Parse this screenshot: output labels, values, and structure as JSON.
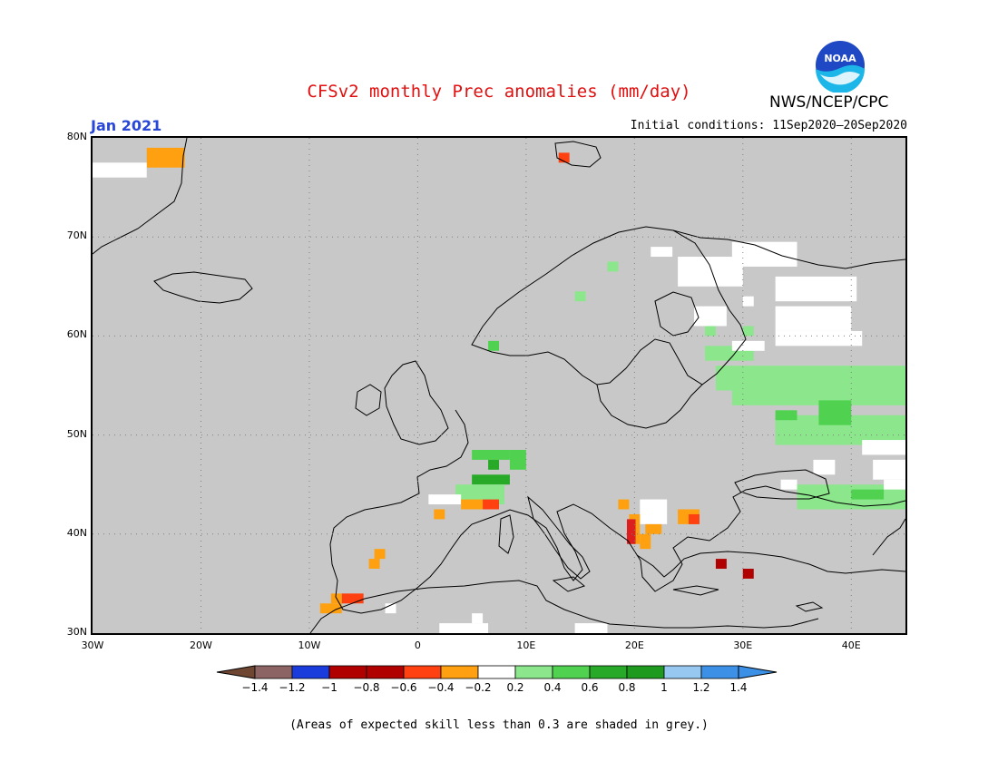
{
  "title": "CFSv2 monthly Prec anomalies (mm/day)",
  "organization": "NWS/NCEP/CPC",
  "logo_text": "NOAA",
  "target_month": "Jan 2021",
  "initial_conditions": "Initial conditions: 11Sep2020–20Sep2020",
  "map": {
    "lon_range": [
      -30,
      45
    ],
    "lat_range": [
      30,
      80
    ],
    "background_color": "#c8c8c8",
    "lat_labels": [
      "80N",
      "70N",
      "60N",
      "50N",
      "40N",
      "30N"
    ],
    "lat_values": [
      80,
      70,
      60,
      50,
      40,
      30
    ],
    "lon_labels": [
      "30W",
      "20W",
      "10W",
      "0",
      "10E",
      "20E",
      "30E",
      "40E"
    ],
    "lon_values": [
      -30,
      -20,
      -10,
      0,
      10,
      20,
      30,
      40
    ],
    "anomaly_cells": [
      {
        "lon": -25,
        "lat": 79,
        "w": 3.5,
        "h": 2,
        "color": "#ffa010"
      },
      {
        "lon": 13,
        "lat": 78.5,
        "w": 1,
        "h": 1,
        "color": "#ff4010"
      },
      {
        "lon": 17.5,
        "lat": 67.5,
        "w": 1,
        "h": 1,
        "color": "#8ce68c"
      },
      {
        "lon": 14.5,
        "lat": 64.5,
        "w": 1,
        "h": 1,
        "color": "#8ce68c"
      },
      {
        "lon": 6.5,
        "lat": 59.5,
        "w": 1,
        "h": 1,
        "color": "#50d250"
      },
      {
        "lon": 26.5,
        "lat": 59,
        "w": 4.5,
        "h": 1.5,
        "color": "#8ce68c"
      },
      {
        "lon": 27.5,
        "lat": 57,
        "w": 17.5,
        "h": 2.5,
        "color": "#8ce68c"
      },
      {
        "lon": 29,
        "lat": 55,
        "w": 16,
        "h": 2,
        "color": "#8ce68c"
      },
      {
        "lon": 33,
        "lat": 52,
        "w": 12,
        "h": 3,
        "color": "#8ce68c"
      },
      {
        "lon": 37,
        "lat": 53.5,
        "w": 3,
        "h": 2.5,
        "color": "#50d250"
      },
      {
        "lon": 33,
        "lat": 52.5,
        "w": 2,
        "h": 1,
        "color": "#50d250"
      },
      {
        "lon": 35,
        "lat": 45,
        "w": 10,
        "h": 2.5,
        "color": "#8ce68c"
      },
      {
        "lon": 40,
        "lat": 44.5,
        "w": 3,
        "h": 1,
        "color": "#50d250"
      },
      {
        "lon": 5,
        "lat": 48.5,
        "w": 3.5,
        "h": 1,
        "color": "#50d250"
      },
      {
        "lon": 8.5,
        "lat": 48.5,
        "w": 1.5,
        "h": 2,
        "color": "#50d250"
      },
      {
        "lon": 6.5,
        "lat": 47.5,
        "w": 1,
        "h": 1,
        "color": "#28aa28"
      },
      {
        "lon": 5,
        "lat": 46,
        "w": 3.5,
        "h": 1,
        "color": "#28aa28"
      },
      {
        "lon": 3.5,
        "lat": 45,
        "w": 4.5,
        "h": 2,
        "color": "#8ce68c"
      },
      {
        "lon": 1,
        "lat": 44,
        "w": 3,
        "h": 1,
        "color": "#ffffff"
      },
      {
        "lon": 4,
        "lat": 43.5,
        "w": 2,
        "h": 1,
        "color": "#ffa010"
      },
      {
        "lon": 6,
        "lat": 43.5,
        "w": 1.5,
        "h": 1,
        "color": "#ff4010"
      },
      {
        "lon": 1.5,
        "lat": 42.5,
        "w": 1,
        "h": 1,
        "color": "#ffa010"
      },
      {
        "lon": 18.5,
        "lat": 43.5,
        "w": 1,
        "h": 1,
        "color": "#ffa010"
      },
      {
        "lon": 20.5,
        "lat": 43.5,
        "w": 2.5,
        "h": 2.5,
        "color": "#ffffff"
      },
      {
        "lon": 19.5,
        "lat": 42,
        "w": 1,
        "h": 3,
        "color": "#ffa010"
      },
      {
        "lon": 19.3,
        "lat": 41.5,
        "w": 0.8,
        "h": 2.5,
        "color": "#dc1e1e"
      },
      {
        "lon": 20.5,
        "lat": 40,
        "w": 1,
        "h": 1.5,
        "color": "#ffa010"
      },
      {
        "lon": 21,
        "lat": 41,
        "w": 1.5,
        "h": 1,
        "color": "#ffa010"
      },
      {
        "lon": 24,
        "lat": 42.5,
        "w": 2,
        "h": 1.5,
        "color": "#ffa010"
      },
      {
        "lon": 25,
        "lat": 42,
        "w": 1,
        "h": 1,
        "color": "#ff4010"
      },
      {
        "lon": 27.5,
        "lat": 37.5,
        "w": 1,
        "h": 1,
        "color": "#b00000"
      },
      {
        "lon": 30,
        "lat": 36.5,
        "w": 1,
        "h": 1,
        "color": "#b00000"
      },
      {
        "lon": -4,
        "lat": 38.5,
        "w": 1,
        "h": 1,
        "color": "#ffa010"
      },
      {
        "lon": -4.5,
        "lat": 37.5,
        "w": 1,
        "h": 1,
        "color": "#ffa010"
      },
      {
        "lon": -8,
        "lat": 34,
        "w": 1,
        "h": 1,
        "color": "#ffa010"
      },
      {
        "lon": -7,
        "lat": 34,
        "w": 2,
        "h": 1,
        "color": "#ff4010"
      },
      {
        "lon": -9,
        "lat": 33,
        "w": 2,
        "h": 1,
        "color": "#ffa010"
      },
      {
        "lon": 2,
        "lat": 31,
        "w": 4.5,
        "h": 1,
        "color": "#ffffff"
      },
      {
        "lon": 5,
        "lat": 32,
        "w": 1,
        "h": 1,
        "color": "#ffffff"
      },
      {
        "lon": 14.5,
        "lat": 31,
        "w": 3,
        "h": 1,
        "color": "#ffffff"
      },
      {
        "lon": -3,
        "lat": 33,
        "w": 1,
        "h": 1,
        "color": "#ffffff"
      },
      {
        "lon": -30,
        "lat": 77.5,
        "w": 5,
        "h": 1.5,
        "color": "#ffffff"
      },
      {
        "lon": 21.5,
        "lat": 69,
        "w": 2,
        "h": 1,
        "color": "#ffffff"
      },
      {
        "lon": 24,
        "lat": 68,
        "w": 6,
        "h": 3,
        "color": "#ffffff"
      },
      {
        "lon": 29,
        "lat": 69.5,
        "w": 6,
        "h": 2.5,
        "color": "#ffffff"
      },
      {
        "lon": 33,
        "lat": 66,
        "w": 7.5,
        "h": 2.5,
        "color": "#ffffff"
      },
      {
        "lon": 25.5,
        "lat": 63,
        "w": 3,
        "h": 2,
        "color": "#ffffff"
      },
      {
        "lon": 30,
        "lat": 64,
        "w": 1,
        "h": 1,
        "color": "#ffffff"
      },
      {
        "lon": 33,
        "lat": 63,
        "w": 7,
        "h": 2.5,
        "color": "#ffffff"
      },
      {
        "lon": 33,
        "lat": 60.5,
        "w": 8,
        "h": 1.5,
        "color": "#ffffff"
      },
      {
        "lon": 29,
        "lat": 59.5,
        "w": 3,
        "h": 1,
        "color": "#ffffff"
      },
      {
        "lon": 41,
        "lat": 49.5,
        "w": 4,
        "h": 1.5,
        "color": "#ffffff"
      },
      {
        "lon": 42,
        "lat": 47.5,
        "w": 3,
        "h": 2,
        "color": "#ffffff"
      },
      {
        "lon": 36.5,
        "lat": 47.5,
        "w": 2,
        "h": 1.5,
        "color": "#ffffff"
      },
      {
        "lon": 33.5,
        "lat": 45.5,
        "w": 1.5,
        "h": 1,
        "color": "#ffffff"
      },
      {
        "lon": 43,
        "lat": 45.5,
        "w": 2,
        "h": 1,
        "color": "#ffffff"
      },
      {
        "lon": 26.5,
        "lat": 61,
        "w": 1,
        "h": 1,
        "color": "#8ce68c"
      },
      {
        "lon": 30,
        "lat": 61,
        "w": 1,
        "h": 1,
        "color": "#8ce68c"
      }
    ]
  },
  "colorbar": {
    "colors": [
      "#8c6464",
      "#1a3cdc",
      "#b00000",
      "#b00000",
      "#ff4010",
      "#ffa010",
      "#ffffff",
      "#8ce68c",
      "#50d250",
      "#28aa28",
      "#1e9b1e",
      "#96c8f0",
      "#3c91e6"
    ],
    "under_color": "#6e4632",
    "over_color": "#3c91e6",
    "tick_labels": [
      "−1.4",
      "−1.2",
      "−1",
      "−0.8",
      "−0.6",
      "−0.4",
      "−0.2",
      "0.2",
      "0.4",
      "0.6",
      "0.8",
      "1",
      "1.2",
      "1.4"
    ]
  },
  "footnote": "(Areas of expected skill less than 0.3 are shaded in grey.)"
}
